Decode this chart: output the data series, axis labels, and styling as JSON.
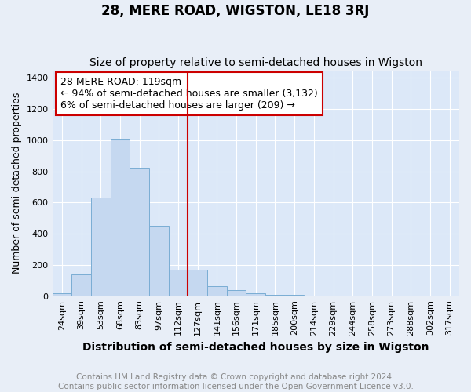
{
  "title": "28, MERE ROAD, WIGSTON, LE18 3RJ",
  "subtitle": "Size of property relative to semi-detached houses in Wigston",
  "xlabel": "Distribution of semi-detached houses by size in Wigston",
  "ylabel": "Number of semi-detached properties",
  "footer_line1": "Contains HM Land Registry data © Crown copyright and database right 2024.",
  "footer_line2": "Contains public sector information licensed under the Open Government Licence v3.0.",
  "categories": [
    "24sqm",
    "39sqm",
    "53sqm",
    "68sqm",
    "83sqm",
    "97sqm",
    "112sqm",
    "127sqm",
    "141sqm",
    "156sqm",
    "171sqm",
    "185sqm",
    "200sqm",
    "214sqm",
    "229sqm",
    "244sqm",
    "258sqm",
    "273sqm",
    "288sqm",
    "302sqm",
    "317sqm"
  ],
  "values": [
    18,
    140,
    635,
    1010,
    825,
    450,
    170,
    170,
    65,
    40,
    20,
    8,
    8,
    0,
    0,
    0,
    0,
    0,
    0,
    0,
    0
  ],
  "bar_color": "#c5d8f0",
  "bar_edge_color": "#7aadd4",
  "annotation_text_line1": "28 MERE ROAD: 119sqm",
  "annotation_text_line2": "← 94% of semi-detached houses are smaller (3,132)",
  "annotation_text_line3": "6% of semi-detached houses are larger (209) →",
  "vline_color": "#cc0000",
  "vline_x": 6.5,
  "ylim": [
    0,
    1450
  ],
  "yticks": [
    0,
    200,
    400,
    600,
    800,
    1000,
    1200,
    1400
  ],
  "bg_color": "#e8eef7",
  "plot_bg_color": "#dce8f8",
  "grid_color": "#ffffff",
  "annotation_box_color": "#ffffff",
  "annotation_box_edge": "#cc0000",
  "title_fontsize": 12,
  "subtitle_fontsize": 10,
  "xlabel_fontsize": 10,
  "ylabel_fontsize": 9,
  "tick_fontsize": 8,
  "annotation_fontsize": 9,
  "footer_fontsize": 7.5
}
